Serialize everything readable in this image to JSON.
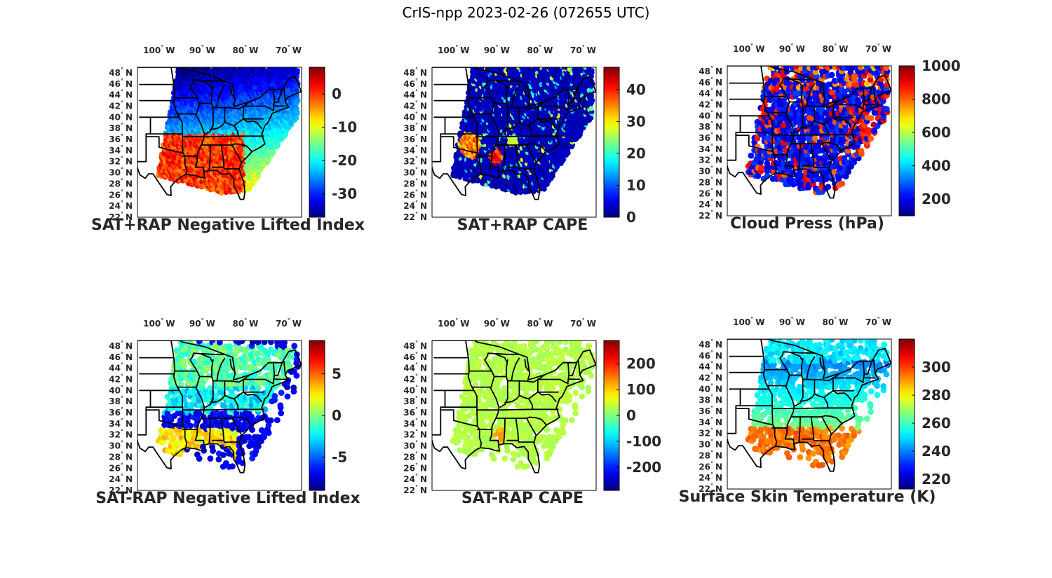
{
  "figure": {
    "title": "CrIS-npp 2023-02-26 (072655 UTC)"
  },
  "map_axes": {
    "lon_ticks": [
      {
        "value": -100,
        "deg": "100",
        "hem": "W"
      },
      {
        "value": -90,
        "deg": "90",
        "hem": "W"
      },
      {
        "value": -80,
        "deg": "80",
        "hem": "W"
      },
      {
        "value": -70,
        "deg": "70",
        "hem": "W"
      }
    ],
    "lat_ticks": [
      {
        "value": 48,
        "deg": "48",
        "hem": "N"
      },
      {
        "value": 46,
        "deg": "46",
        "hem": "N"
      },
      {
        "value": 44,
        "deg": "44",
        "hem": "N"
      },
      {
        "value": 42,
        "deg": "42",
        "hem": "N"
      },
      {
        "value": 40,
        "deg": "40",
        "hem": "N"
      },
      {
        "value": 38,
        "deg": "38",
        "hem": "N"
      },
      {
        "value": 36,
        "deg": "36",
        "hem": "N"
      },
      {
        "value": 34,
        "deg": "34",
        "hem": "N"
      },
      {
        "value": 32,
        "deg": "32",
        "hem": "N"
      },
      {
        "value": 30,
        "deg": "30",
        "hem": "N"
      },
      {
        "value": 28,
        "deg": "28",
        "hem": "N"
      },
      {
        "value": 26,
        "deg": "26",
        "hem": "N"
      },
      {
        "value": 24,
        "deg": "24",
        "hem": "N"
      },
      {
        "value": 22,
        "deg": "22",
        "hem": "N"
      }
    ],
    "degree_symbol": "°",
    "lon_range": [
      -105,
      -67
    ],
    "lat_range": [
      22,
      49
    ]
  },
  "chart_data": [
    {
      "type": "heatmap",
      "title": "SAT+RAP Negative Lifted Index",
      "colormap": "jet",
      "clim": [
        -37,
        8
      ],
      "colorbar_ticks": [
        {
          "value": 0,
          "label": "0"
        },
        {
          "value": -10,
          "label": "-10"
        },
        {
          "value": -20,
          "label": "-20"
        },
        {
          "value": -30,
          "label": "-30"
        }
      ],
      "swath": "full",
      "field": "nli"
    },
    {
      "type": "heatmap",
      "title": "SAT+RAP CAPE",
      "colormap": "jet",
      "clim": [
        0,
        47
      ],
      "colorbar_ticks": [
        {
          "value": 40,
          "label": "40"
        },
        {
          "value": 30,
          "label": "30"
        },
        {
          "value": 20,
          "label": "20"
        },
        {
          "value": 10,
          "label": "10"
        },
        {
          "value": 0,
          "label": "0"
        }
      ],
      "swath": "full",
      "field": "cape"
    },
    {
      "type": "heatmap",
      "title": "Cloud Press (hPa)",
      "colormap": "jet",
      "clim": [
        100,
        1000
      ],
      "colorbar_ticks": [
        {
          "value": 1000,
          "label": "1000"
        },
        {
          "value": 800,
          "label": "800"
        },
        {
          "value": 600,
          "label": "600"
        },
        {
          "value": 400,
          "label": "400"
        },
        {
          "value": 200,
          "label": "200"
        }
      ],
      "swath": "cloudy",
      "field": "cloud"
    },
    {
      "type": "heatmap",
      "title": "SAT-RAP Negative Lifted Index",
      "colormap": "jet",
      "clim": [
        -9,
        9
      ],
      "colorbar_ticks": [
        {
          "value": 5,
          "label": "5"
        },
        {
          "value": 0,
          "label": "0"
        },
        {
          "value": -5,
          "label": "-5"
        }
      ],
      "swath": "sparse",
      "field": "dnli"
    },
    {
      "type": "heatmap",
      "title": "SAT-RAP CAPE",
      "colormap": "jet",
      "clim": [
        -290,
        290
      ],
      "colorbar_ticks": [
        {
          "value": 200,
          "label": "200"
        },
        {
          "value": 100,
          "label": "100"
        },
        {
          "value": 0,
          "label": "0"
        },
        {
          "value": -100,
          "label": "-100"
        },
        {
          "value": -200,
          "label": "-200"
        }
      ],
      "swath": "sparse",
      "field": "dcape"
    },
    {
      "type": "heatmap",
      "title": "Surface Skin Temperature (K)",
      "colormap": "jet",
      "clim": [
        213,
        320
      ],
      "colorbar_ticks": [
        {
          "value": 300,
          "label": "300"
        },
        {
          "value": 280,
          "label": "280"
        },
        {
          "value": 260,
          "label": "260"
        },
        {
          "value": 240,
          "label": "240"
        },
        {
          "value": 220,
          "label": "220"
        }
      ],
      "swath": "sparse",
      "field": "tsk"
    }
  ]
}
